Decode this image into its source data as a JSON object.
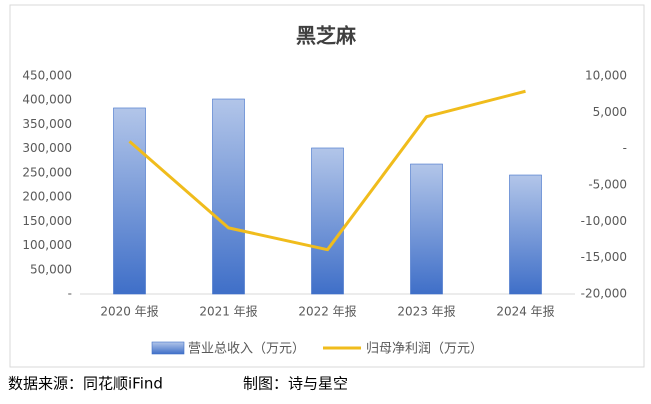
{
  "chart_data": {
    "type": "bar-line",
    "title": "黑芝麻",
    "categories": [
      "2020 年报",
      "2021 年报",
      "2022 年报",
      "2023 年报",
      "2024 年报"
    ],
    "series": [
      {
        "name": "营业总收入（万元）",
        "type": "bar",
        "color": "#3f6fc8",
        "values": [
          384000,
          402500,
          301400,
          268300,
          245600
        ]
      },
      {
        "name": "归母净利润（万元）",
        "type": "line",
        "axis": "y2",
        "color": "#f0bc1c",
        "values": [
          1000,
          -10900,
          -13900,
          4400,
          7900
        ]
      }
    ],
    "ylim": [
      0,
      450000
    ],
    "yticks": [
      {
        "value": 0,
        "label": "-"
      },
      {
        "value": 50000,
        "label": "50,000"
      },
      {
        "value": 100000,
        "label": "100,000"
      },
      {
        "value": 150000,
        "label": "150,000"
      },
      {
        "value": 200000,
        "label": "200,000"
      },
      {
        "value": 250000,
        "label": "250,000"
      },
      {
        "value": 300000,
        "label": "300,000"
      },
      {
        "value": 350000,
        "label": "350,000"
      },
      {
        "value": 400000,
        "label": "400,000"
      },
      {
        "value": 450000,
        "label": "450,000"
      }
    ],
    "y2lim": [
      -20000,
      10000
    ],
    "y2ticks": [
      {
        "value": -20000,
        "label": "-20,000"
      },
      {
        "value": -15000,
        "label": "-15,000"
      },
      {
        "value": -10000,
        "label": "-10,000"
      },
      {
        "value": -5000,
        "label": "-5,000"
      },
      {
        "value": 0,
        "label": "-"
      },
      {
        "value": 5000,
        "label": "5,000"
      },
      {
        "value": 10000,
        "label": "10,000"
      }
    ],
    "grid": false,
    "legend": "bottom"
  },
  "footer": {
    "source": "数据来源：同花顺iFind",
    "credit": "制图：诗与星空"
  }
}
